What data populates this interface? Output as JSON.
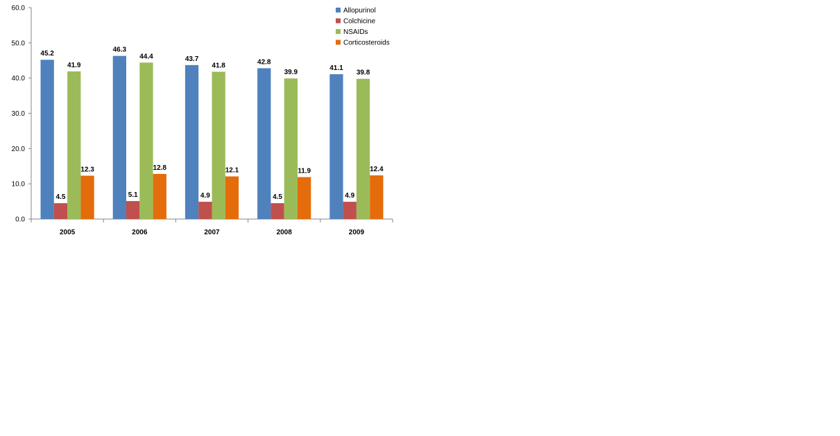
{
  "chart_data": {
    "type": "bar",
    "categories": [
      "2005",
      "2006",
      "2007",
      "2008",
      "2009"
    ],
    "series": [
      {
        "name": "Allopurinol",
        "values": [
          45.2,
          46.3,
          43.7,
          42.8,
          41.1
        ],
        "color": "#4F81BD"
      },
      {
        "name": "Colchicine",
        "values": [
          4.5,
          5.1,
          4.9,
          4.5,
          4.9
        ],
        "color": "#C0504D"
      },
      {
        "name": "NSAIDs",
        "values": [
          41.9,
          44.4,
          41.8,
          39.9,
          39.8
        ],
        "color": "#9BBB59"
      },
      {
        "name": "Corticosteroids",
        "values": [
          12.3,
          12.8,
          12.1,
          11.9,
          12.4
        ],
        "color": "#E46C0A"
      }
    ],
    "y_ticks": [
      "0.0",
      "10.0",
      "20.0",
      "30.0",
      "40.0",
      "50.0",
      "60.0"
    ],
    "ylim": [
      0,
      60
    ],
    "title": "",
    "xlabel": "",
    "ylabel": "",
    "grid": false,
    "legend_position": "top-right"
  }
}
